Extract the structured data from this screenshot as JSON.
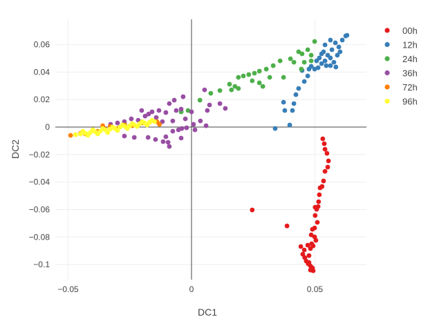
{
  "chart_data": {
    "type": "scatter",
    "title": "",
    "xlabel": "DC1",
    "ylabel": "DC2",
    "xlim": [
      -0.0552,
      0.0709
    ],
    "ylim": [
      -0.111,
      0.0784
    ],
    "xticks": [
      -0.05,
      0,
      0.05
    ],
    "xtick_labels": [
      "−0.05",
      "0",
      "0.05"
    ],
    "yticks": [
      -0.1,
      -0.08,
      -0.06,
      -0.04,
      -0.02,
      0,
      0.02,
      0.04,
      0.06
    ],
    "ytick_labels": [
      "−0.1",
      "−0.08",
      "−0.06",
      "−0.04",
      "−0.02",
      "0",
      "0.02",
      "0.04",
      "0.06"
    ],
    "grid": true,
    "legend_position": "top-right",
    "series": [
      {
        "name": "00h",
        "color": "#e41a1c",
        "points": [
          [
            0.0532,
            -0.0085
          ],
          [
            0.0538,
            -0.0121
          ],
          [
            0.0541,
            -0.0161
          ],
          [
            0.0549,
            -0.0191
          ],
          [
            0.0555,
            -0.0246
          ],
          [
            0.0552,
            -0.0291
          ],
          [
            0.0541,
            -0.0322
          ],
          [
            0.0535,
            -0.0392
          ],
          [
            0.0529,
            -0.0432
          ],
          [
            0.0521,
            -0.0442
          ],
          [
            0.0518,
            -0.0492
          ],
          [
            0.0515,
            -0.0543
          ],
          [
            0.0513,
            -0.0578
          ],
          [
            0.0501,
            -0.0583
          ],
          [
            0.0507,
            -0.0598
          ],
          [
            0.0501,
            -0.0643
          ],
          [
            0.051,
            -0.0693
          ],
          [
            0.0499,
            -0.0734
          ],
          [
            0.049,
            -0.0744
          ],
          [
            0.0485,
            -0.0784
          ],
          [
            0.0504,
            -0.0824
          ],
          [
            0.0487,
            -0.0849
          ],
          [
            0.0482,
            -0.0884
          ],
          [
            0.0471,
            -0.0859
          ],
          [
            0.0457,
            -0.0894
          ],
          [
            0.0451,
            -0.0925
          ],
          [
            0.0459,
            -0.095
          ],
          [
            0.0465,
            -0.0975
          ],
          [
            0.0473,
            -0.0995
          ],
          [
            0.0482,
            -0.101
          ],
          [
            0.049,
            -0.1025
          ],
          [
            0.0493,
            -0.1045
          ],
          [
            0.0482,
            -0.104
          ],
          [
            0.0476,
            -0.0985
          ],
          [
            0.0499,
            -0.0799
          ],
          [
            0.0387,
            -0.0719
          ],
          [
            0.0246,
            -0.0603
          ],
          [
            0.0493,
            -0.0864
          ],
          [
            0.0443,
            -0.0869
          ],
          [
            0.0476,
            -0.0935
          ]
        ]
      },
      {
        "name": "12h",
        "color": "#377eb8",
        "points": [
          [
            0.0339,
            -0.001
          ],
          [
            0.0398,
            0.0015
          ],
          [
            0.0378,
            0.0121
          ],
          [
            0.0373,
            0.0181
          ],
          [
            0.0409,
            0.0121
          ],
          [
            0.0415,
            0.0171
          ],
          [
            0.0423,
            0.0236
          ],
          [
            0.0434,
            0.0281
          ],
          [
            0.0457,
            0.0332
          ],
          [
            0.0471,
            0.0372
          ],
          [
            0.0476,
            0.0422
          ],
          [
            0.0448,
            0.0412
          ],
          [
            0.0485,
            0.0442
          ],
          [
            0.0499,
            0.0422
          ],
          [
            0.0513,
            0.0432
          ],
          [
            0.0527,
            0.0462
          ],
          [
            0.0541,
            0.0482
          ],
          [
            0.0563,
            0.0447
          ],
          [
            0.0585,
            0.0437
          ],
          [
            0.0577,
            0.0472
          ],
          [
            0.0552,
            0.0523
          ],
          [
            0.0535,
            0.0548
          ],
          [
            0.0569,
            0.0563
          ],
          [
            0.0597,
            0.0583
          ],
          [
            0.0583,
            0.0613
          ],
          [
            0.0611,
            0.0633
          ],
          [
            0.0625,
            0.0663
          ],
          [
            0.063,
            0.0668
          ],
          [
            0.0563,
            0.0633
          ],
          [
            0.0541,
            0.0598
          ],
          [
            0.0591,
            0.0523
          ],
          [
            0.0527,
            0.0533
          ],
          [
            0.0563,
            0.0503
          ],
          [
            0.0602,
            0.0548
          ],
          [
            0.0546,
            0.0447
          ],
          [
            0.0507,
            0.0482
          ],
          [
            0.0518,
            0.0503
          ]
        ]
      },
      {
        "name": "24h",
        "color": "#4daf4a",
        "points": [
          [
            -0.0042,
            0.0111
          ],
          [
            -0.0014,
            0.0121
          ],
          [
            0.0034,
            0.0196
          ],
          [
            0.0078,
            0.0246
          ],
          [
            0.0115,
            0.0266
          ],
          [
            0.0154,
            0.0312
          ],
          [
            0.0162,
            0.0271
          ],
          [
            0.0176,
            0.0296
          ],
          [
            0.019,
            0.0362
          ],
          [
            0.021,
            0.0372
          ],
          [
            0.0232,
            0.0382
          ],
          [
            0.0255,
            0.0392
          ],
          [
            0.0275,
            0.0407
          ],
          [
            0.0303,
            0.0422
          ],
          [
            0.0317,
            0.0362
          ],
          [
            0.0331,
            0.0447
          ],
          [
            0.0359,
            0.0482
          ],
          [
            0.0373,
            0.0362
          ],
          [
            0.0275,
            0.0322
          ],
          [
            0.0246,
            0.0337
          ],
          [
            0.0289,
            0.0296
          ],
          [
            0.019,
            0.0281
          ],
          [
            0.0401,
            0.0497
          ],
          [
            0.0434,
            0.0548
          ],
          [
            0.0448,
            0.0533
          ],
          [
            0.0471,
            0.0563
          ],
          [
            0.0485,
            0.0523
          ],
          [
            0.0457,
            0.0472
          ],
          [
            0.0445,
            0.0422
          ],
          [
            0.0415,
            0.0472
          ],
          [
            0.0499,
            0.0623
          ],
          [
            0.0485,
            0.0482
          ]
        ]
      },
      {
        "name": "36h",
        "color": "#984ea3",
        "points": [
          [
            -0.0272,
            -0.0065
          ],
          [
            -0.0232,
            -0.0075
          ],
          [
            -0.0176,
            -0.0075
          ],
          [
            -0.0146,
            -0.009
          ],
          [
            -0.0115,
            -0.0106
          ],
          [
            -0.0095,
            -0.0111
          ],
          [
            -0.009,
            -0.0141
          ],
          [
            -0.0104,
            -0.007
          ],
          [
            -0.0076,
            -0.003
          ],
          [
            -0.0053,
            -0.002
          ],
          [
            -0.0039,
            -0.001
          ],
          [
            -0.002,
            -0.0005
          ],
          [
            0.0008,
            0.002
          ],
          [
            0.0036,
            0.0045
          ],
          [
            0.0059,
            0.001
          ],
          [
            0.0014,
            -0.002
          ],
          [
            -0.0042,
            -0.008
          ],
          [
            -0.0025,
            0.006
          ],
          [
            0,
            0.0111
          ],
          [
            0.0053,
            0.0271
          ],
          [
            0.0115,
            0.0171
          ],
          [
            0.0137,
            0.0136
          ],
          [
            0.0073,
            0.0161
          ],
          [
            -0.009,
            0.0171
          ],
          [
            -0.007,
            0.0196
          ],
          [
            -0.0034,
            0.0221
          ],
          [
            -0.0062,
            0.0121
          ],
          [
            -0.0042,
            0.0131
          ],
          [
            -0.0216,
            0.005
          ],
          [
            -0.0188,
            0.008
          ],
          [
            -0.016,
            0.0111
          ],
          [
            -0.0132,
            0.0121
          ],
          [
            -0.0104,
            0.0106
          ],
          [
            -0.0202,
            0.0121
          ],
          [
            -0.0174,
            0.0095
          ],
          [
            -0.03,
            0.003
          ],
          [
            -0.0272,
            0.004
          ],
          [
            -0.0244,
            0.006
          ],
          [
            -0.0328,
            0.002
          ],
          [
            -0.0356,
            -0.0005
          ],
          [
            -0.0118,
            0.004
          ],
          [
            -0.0143,
            0.007
          ],
          [
            -0.0076,
            0.0045
          ],
          [
            0.0064,
            0.0121
          ]
        ]
      },
      {
        "name": "72h",
        "color": "#ff7f00",
        "points": [
          [
            -0.049,
            -0.006
          ],
          [
            -0.047,
            -0.0055
          ],
          [
            -0.045,
            -0.0045
          ],
          [
            -0.043,
            -0.005
          ],
          [
            -0.04,
            -0.002
          ],
          [
            -0.038,
            -0.003
          ],
          [
            -0.035,
            -0.0015
          ],
          [
            -0.033,
            0.0005
          ],
          [
            -0.03,
            -0.001
          ],
          [
            -0.027,
            0.0015
          ],
          [
            -0.024,
            0.001
          ],
          [
            -0.02,
            0.003
          ],
          [
            -0.017,
            0.0035
          ],
          [
            -0.014,
            0.004
          ],
          [
            -0.013,
            0.002
          ],
          [
            -0.036,
            0.001
          ]
        ]
      },
      {
        "name": "96h",
        "color": "#ffff33",
        "points": [
          [
            -0.047,
            -0.0055
          ],
          [
            -0.045,
            -0.005
          ],
          [
            -0.043,
            -0.0045
          ],
          [
            -0.041,
            -0.004
          ],
          [
            -0.039,
            -0.0035
          ],
          [
            -0.037,
            -0.003
          ],
          [
            -0.035,
            -0.002
          ],
          [
            -0.033,
            -0.0015
          ],
          [
            -0.031,
            -0.001
          ],
          [
            -0.029,
            0
          ],
          [
            -0.027,
            0.0005
          ],
          [
            -0.025,
            0.001
          ],
          [
            -0.023,
            0.0015
          ],
          [
            -0.021,
            0.0025
          ],
          [
            -0.019,
            0.003
          ],
          [
            -0.017,
            0.0035
          ],
          [
            -0.015,
            0.004
          ],
          [
            -0.044,
            -0.003
          ],
          [
            -0.04,
            -0.002
          ],
          [
            -0.036,
            -0.001
          ],
          [
            -0.032,
            0
          ],
          [
            -0.028,
            0.0015
          ],
          [
            -0.024,
            0.0025
          ],
          [
            -0.02,
            0.004
          ],
          [
            -0.016,
            0.005
          ],
          [
            -0.042,
            -0.006
          ],
          [
            -0.038,
            -0.005
          ],
          [
            -0.034,
            -0.004
          ],
          [
            -0.03,
            -0.0025
          ],
          [
            -0.026,
            -0.001
          ],
          [
            -0.022,
            0.0005
          ],
          [
            -0.018,
            0.0015
          ]
        ]
      }
    ]
  }
}
